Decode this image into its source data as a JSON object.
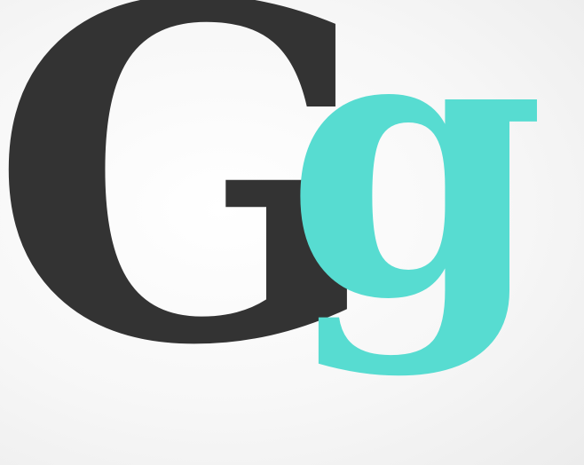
{
  "specimen": {
    "uppercase": {
      "char": "G",
      "color": "#333333"
    },
    "lowercase": {
      "char": "g",
      "color": "#57dcd1"
    }
  },
  "background": {
    "center": "#ffffff",
    "edge": "#ececec"
  }
}
